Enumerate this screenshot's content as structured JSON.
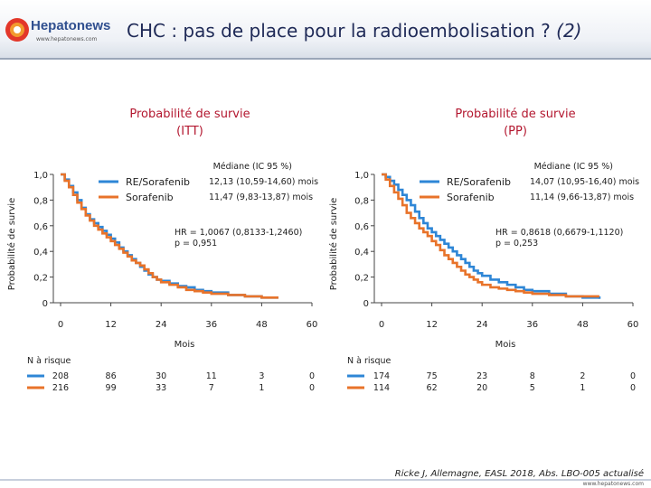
{
  "header": {
    "logo_name": "Hepatonews",
    "logo_url": "www.hepatonews.com",
    "title_main": "CHC : pas de place pour la radioembolisation ?",
    "title_suffix": "(2)"
  },
  "colors": {
    "re_sorafenib": "#2e86d6",
    "sorafenib": "#e8732a",
    "accent": "#b3172f"
  },
  "chart_data": [
    {
      "type": "line",
      "title": "Probabilité de survie\n(ITT)",
      "xlabel": "Mois",
      "ylabel": "Probabilité de survie",
      "xlim": [
        0,
        60
      ],
      "ylim": [
        0,
        1
      ],
      "xticks": [
        "0",
        "12",
        "24",
        "36",
        "48",
        "60"
      ],
      "yticks": [
        "0",
        "0,2",
        "0,4",
        "0,6",
        "0,8",
        "1,0"
      ],
      "legend_header": "Médiane (IC 95 %)",
      "series": [
        {
          "name": "RE/Sorafenib",
          "median": "12,13 (10,59-14,60) mois",
          "x": [
            0,
            1,
            2,
            3,
            4,
            5,
            6,
            7,
            8,
            9,
            10,
            11,
            12,
            13,
            14,
            15,
            16,
            17,
            18,
            19,
            20,
            21,
            22,
            23,
            24,
            26,
            28,
            30,
            32,
            34,
            36,
            40,
            44,
            48,
            52
          ],
          "y": [
            1,
            0.96,
            0.91,
            0.86,
            0.8,
            0.74,
            0.69,
            0.65,
            0.62,
            0.59,
            0.56,
            0.53,
            0.5,
            0.47,
            0.43,
            0.4,
            0.37,
            0.34,
            0.31,
            0.28,
            0.25,
            0.22,
            0.2,
            0.18,
            0.17,
            0.15,
            0.13,
            0.12,
            0.1,
            0.09,
            0.08,
            0.06,
            0.05,
            0.04,
            0.04
          ]
        },
        {
          "name": "Sorafenib",
          "median": "11,47 (9,83-13,87) mois",
          "x": [
            0,
            1,
            2,
            3,
            4,
            5,
            6,
            7,
            8,
            9,
            10,
            11,
            12,
            13,
            14,
            15,
            16,
            17,
            18,
            19,
            20,
            21,
            22,
            23,
            24,
            26,
            28,
            30,
            32,
            34,
            36,
            40,
            44,
            48,
            52
          ],
          "y": [
            1,
            0.95,
            0.9,
            0.84,
            0.78,
            0.73,
            0.68,
            0.64,
            0.6,
            0.57,
            0.54,
            0.51,
            0.48,
            0.45,
            0.42,
            0.39,
            0.36,
            0.33,
            0.31,
            0.29,
            0.26,
            0.23,
            0.2,
            0.18,
            0.16,
            0.14,
            0.12,
            0.1,
            0.09,
            0.08,
            0.07,
            0.06,
            0.05,
            0.04,
            0.04
          ]
        }
      ],
      "annotation": [
        "HR = 1,0067 (0,8133-1,2460)",
        "p = 0,951"
      ],
      "at_risk": {
        "label": "N à risque",
        "times": [
          0,
          12,
          24,
          36,
          48,
          60
        ],
        "rows": [
          {
            "series": "RE/Sorafenib",
            "values": [
              "208",
              "86",
              "30",
              "11",
              "3",
              "0"
            ]
          },
          {
            "series": "Sorafenib",
            "values": [
              "216",
              "99",
              "33",
              "7",
              "1",
              "0"
            ]
          }
        ]
      }
    },
    {
      "type": "line",
      "title": "Probabilité de survie\n(PP)",
      "xlabel": "Mois",
      "ylabel": "Probabilité de survie",
      "xlim": [
        0,
        60
      ],
      "ylim": [
        0,
        1
      ],
      "xticks": [
        "0",
        "12",
        "24",
        "36",
        "48",
        "60"
      ],
      "yticks": [
        "0",
        "0,2",
        "0,4",
        "0,6",
        "0,8",
        "1,0"
      ],
      "legend_header": "Médiane (IC 95 %)",
      "series": [
        {
          "name": "RE/Sorafenib",
          "median": "14,07 (10,95-16,40) mois",
          "x": [
            0,
            1,
            2,
            3,
            4,
            5,
            6,
            7,
            8,
            9,
            10,
            11,
            12,
            13,
            14,
            15,
            16,
            17,
            18,
            19,
            20,
            21,
            22,
            23,
            24,
            26,
            28,
            30,
            32,
            34,
            36,
            40,
            44,
            48,
            52
          ],
          "y": [
            1,
            0.98,
            0.95,
            0.92,
            0.88,
            0.84,
            0.8,
            0.76,
            0.71,
            0.66,
            0.62,
            0.58,
            0.55,
            0.52,
            0.49,
            0.46,
            0.43,
            0.4,
            0.37,
            0.34,
            0.31,
            0.28,
            0.25,
            0.23,
            0.21,
            0.18,
            0.16,
            0.14,
            0.12,
            0.1,
            0.09,
            0.07,
            0.05,
            0.04,
            0.03
          ]
        },
        {
          "name": "Sorafenib",
          "median": "11,14 (9,66-13,87) mois",
          "x": [
            0,
            1,
            2,
            3,
            4,
            5,
            6,
            7,
            8,
            9,
            10,
            11,
            12,
            13,
            14,
            15,
            16,
            17,
            18,
            19,
            20,
            21,
            22,
            23,
            24,
            26,
            28,
            30,
            32,
            34,
            36,
            40,
            44,
            48,
            52
          ],
          "y": [
            1,
            0.96,
            0.91,
            0.86,
            0.81,
            0.76,
            0.7,
            0.66,
            0.62,
            0.58,
            0.55,
            0.52,
            0.48,
            0.45,
            0.41,
            0.37,
            0.34,
            0.31,
            0.28,
            0.25,
            0.22,
            0.2,
            0.18,
            0.16,
            0.14,
            0.12,
            0.11,
            0.1,
            0.09,
            0.08,
            0.07,
            0.06,
            0.05,
            0.05,
            0.05
          ]
        }
      ],
      "annotation": [
        "HR = 0,8618 (0,6679-1,1120)",
        "p = 0,253"
      ],
      "at_risk": {
        "label": "N à risque",
        "times": [
          0,
          12,
          24,
          36,
          48,
          60
        ],
        "rows": [
          {
            "series": "RE/Sorafenib",
            "values": [
              "174",
              "75",
              "23",
              "8",
              "2",
              "0"
            ]
          },
          {
            "series": "Sorafenib",
            "values": [
              "114",
              "62",
              "20",
              "5",
              "1",
              "0"
            ]
          }
        ]
      }
    }
  ],
  "footer": {
    "citation": "Ricke J, Allemagne, EASL 2018, Abs. LBO-005 actualisé",
    "url": "www.hepatonews.com"
  }
}
